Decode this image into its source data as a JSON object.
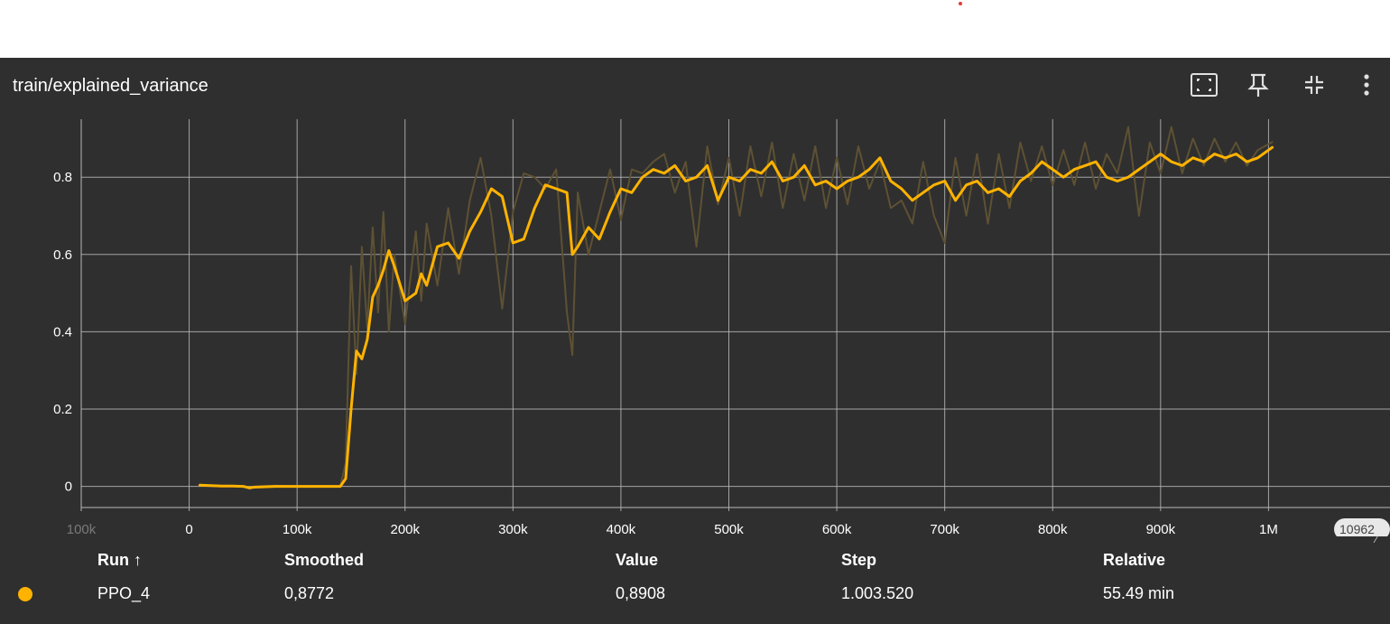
{
  "card": {
    "title": "train/explained_variance"
  },
  "toolbar": {
    "icons": [
      "fit-screen-icon",
      "pin-icon",
      "collapse-icon",
      "more-vert-icon"
    ]
  },
  "colors": {
    "background": "#2f2f2f",
    "smoothed": "#ffb300",
    "raw": "#5e5133",
    "grid": "#b9b9b9",
    "text": "#ffffff"
  },
  "chart_data": {
    "type": "line",
    "title": "train/explained_variance",
    "xlabel": "",
    "ylabel": "",
    "xlim": [
      -100000,
      1100000
    ],
    "ylim": [
      -0.05,
      0.95
    ],
    "x_ticks": [
      "100k",
      "0",
      "100k",
      "200k",
      "300k",
      "400k",
      "500k",
      "600k",
      "700k",
      "800k",
      "900k",
      "1M"
    ],
    "x_tick_values": [
      -100000,
      0,
      100000,
      200000,
      300000,
      400000,
      500000,
      600000,
      700000,
      800000,
      900000,
      1000000
    ],
    "x_right_label": "10962",
    "y_ticks": [
      "0",
      "0.2",
      "0.4",
      "0.6",
      "0.8"
    ],
    "y_tick_values": [
      0,
      0.2,
      0.4,
      0.6,
      0.8
    ],
    "grid": true,
    "series": [
      {
        "name": "PPO_4",
        "role": "smoothed",
        "x": [
          10000,
          20000,
          30000,
          40000,
          50000,
          56000,
          60000,
          80000,
          100000,
          120000,
          140000,
          145000,
          150000,
          155000,
          160000,
          165000,
          170000,
          175000,
          180000,
          185000,
          190000,
          200000,
          210000,
          215000,
          220000,
          230000,
          240000,
          250000,
          260000,
          270000,
          280000,
          290000,
          300000,
          310000,
          320000,
          330000,
          340000,
          350000,
          355000,
          360000,
          370000,
          380000,
          390000,
          400000,
          410000,
          420000,
          430000,
          440000,
          450000,
          460000,
          470000,
          480000,
          490000,
          500000,
          510000,
          520000,
          530000,
          540000,
          550000,
          560000,
          570000,
          580000,
          590000,
          600000,
          610000,
          620000,
          630000,
          640000,
          650000,
          660000,
          670000,
          680000,
          690000,
          700000,
          710000,
          720000,
          730000,
          740000,
          750000,
          760000,
          770000,
          780000,
          790000,
          800000,
          810000,
          820000,
          830000,
          840000,
          850000,
          860000,
          870000,
          880000,
          890000,
          900000,
          910000,
          920000,
          930000,
          940000,
          950000,
          960000,
          970000,
          980000,
          990000,
          1003520
        ],
        "values": [
          0.003,
          0.002,
          0.001,
          0.001,
          0.0,
          -0.004,
          -0.002,
          0.0,
          0.0,
          0.0,
          0.0,
          0.02,
          0.2,
          0.35,
          0.33,
          0.38,
          0.49,
          0.52,
          0.56,
          0.61,
          0.57,
          0.48,
          0.5,
          0.55,
          0.52,
          0.62,
          0.63,
          0.59,
          0.66,
          0.71,
          0.77,
          0.75,
          0.63,
          0.64,
          0.72,
          0.78,
          0.77,
          0.76,
          0.6,
          0.62,
          0.67,
          0.64,
          0.71,
          0.77,
          0.76,
          0.8,
          0.82,
          0.81,
          0.83,
          0.79,
          0.8,
          0.83,
          0.74,
          0.8,
          0.79,
          0.82,
          0.81,
          0.84,
          0.79,
          0.8,
          0.83,
          0.78,
          0.79,
          0.77,
          0.79,
          0.8,
          0.82,
          0.85,
          0.79,
          0.77,
          0.74,
          0.76,
          0.78,
          0.79,
          0.74,
          0.78,
          0.79,
          0.76,
          0.77,
          0.75,
          0.79,
          0.81,
          0.84,
          0.82,
          0.8,
          0.82,
          0.83,
          0.84,
          0.8,
          0.79,
          0.8,
          0.82,
          0.84,
          0.86,
          0.84,
          0.83,
          0.85,
          0.84,
          0.86,
          0.85,
          0.86,
          0.84,
          0.85,
          0.8772
        ]
      },
      {
        "name": "PPO_4",
        "role": "raw",
        "x": [
          10000,
          20000,
          30000,
          40000,
          50000,
          56000,
          60000,
          80000,
          100000,
          120000,
          140000,
          145000,
          150000,
          155000,
          160000,
          165000,
          170000,
          175000,
          180000,
          185000,
          190000,
          200000,
          210000,
          215000,
          220000,
          230000,
          240000,
          250000,
          260000,
          270000,
          280000,
          290000,
          300000,
          310000,
          320000,
          330000,
          340000,
          350000,
          355000,
          360000,
          370000,
          380000,
          390000,
          400000,
          410000,
          420000,
          430000,
          440000,
          450000,
          460000,
          470000,
          480000,
          490000,
          500000,
          510000,
          520000,
          530000,
          540000,
          550000,
          560000,
          570000,
          580000,
          590000,
          600000,
          610000,
          620000,
          630000,
          640000,
          650000,
          660000,
          670000,
          680000,
          690000,
          700000,
          710000,
          720000,
          730000,
          740000,
          750000,
          760000,
          770000,
          780000,
          790000,
          800000,
          810000,
          820000,
          830000,
          840000,
          850000,
          860000,
          870000,
          880000,
          890000,
          900000,
          910000,
          920000,
          930000,
          940000,
          950000,
          960000,
          970000,
          980000,
          990000,
          1003520
        ],
        "values": [
          0.004,
          0.001,
          0.0,
          0.002,
          -0.001,
          -0.006,
          0.0,
          0.002,
          0.0,
          0.001,
          0.0,
          0.06,
          0.57,
          0.29,
          0.62,
          0.41,
          0.67,
          0.45,
          0.71,
          0.4,
          0.6,
          0.42,
          0.66,
          0.48,
          0.68,
          0.52,
          0.72,
          0.55,
          0.74,
          0.85,
          0.7,
          0.46,
          0.71,
          0.81,
          0.8,
          0.77,
          0.82,
          0.45,
          0.34,
          0.76,
          0.6,
          0.71,
          0.82,
          0.69,
          0.82,
          0.81,
          0.84,
          0.86,
          0.76,
          0.84,
          0.62,
          0.88,
          0.73,
          0.85,
          0.7,
          0.88,
          0.75,
          0.89,
          0.72,
          0.86,
          0.74,
          0.88,
          0.72,
          0.85,
          0.73,
          0.88,
          0.77,
          0.84,
          0.72,
          0.74,
          0.68,
          0.84,
          0.7,
          0.63,
          0.85,
          0.7,
          0.86,
          0.68,
          0.86,
          0.72,
          0.89,
          0.79,
          0.88,
          0.78,
          0.87,
          0.78,
          0.89,
          0.77,
          0.86,
          0.81,
          0.93,
          0.7,
          0.89,
          0.81,
          0.93,
          0.81,
          0.9,
          0.83,
          0.9,
          0.84,
          0.89,
          0.83,
          0.87,
          0.8908
        ]
      }
    ]
  },
  "table": {
    "headers": {
      "run": "Run ↑",
      "smoothed": "Smoothed",
      "value": "Value",
      "step": "Step",
      "relative": "Relative"
    },
    "rows": [
      {
        "run": "PPO_4",
        "smoothed": "0,8772",
        "value": "0,8908",
        "step": "1.003.520",
        "relative": "55.49 min"
      }
    ]
  }
}
